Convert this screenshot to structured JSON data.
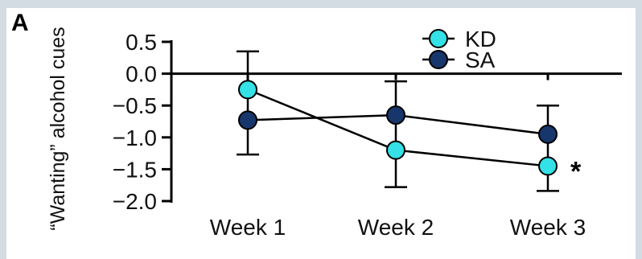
{
  "panel_label": "A",
  "colors": {
    "background": "#d3dbe3",
    "KD": "#33e1e6",
    "SA": "#17366b",
    "line": "#000000"
  },
  "chart_data": {
    "type": "line",
    "title": "",
    "xlabel": "",
    "ylabel": "“Wanting” alcohol cues",
    "categories": [
      "Week 1",
      "Week 2",
      "Week 3"
    ],
    "ylim": [
      -2.0,
      0.5
    ],
    "yticks": [
      0.5,
      0.0,
      -0.5,
      -1.0,
      -1.5,
      -2.0
    ],
    "ytick_labels": [
      "0.5",
      "0.0",
      "−0.5",
      "−1.0",
      "−1.5",
      "−2.0"
    ],
    "grid": false,
    "legend_placement": "top-right",
    "series": [
      {
        "name": "KD",
        "color": "#33e1e6",
        "values": [
          -0.25,
          -1.2,
          -1.45
        ],
        "error": [
          null,
          null,
          null
        ]
      },
      {
        "name": "SA",
        "color": "#17366b",
        "values": [
          -0.73,
          -0.65,
          -0.95
        ],
        "error": [
          [
            -1.27,
            0.35
          ],
          [
            -1.78,
            -0.12
          ],
          [
            -1.84,
            -0.5
          ]
        ]
      }
    ],
    "annotations": [
      {
        "text": "*",
        "category": "Week 3",
        "series": "KD"
      }
    ]
  }
}
